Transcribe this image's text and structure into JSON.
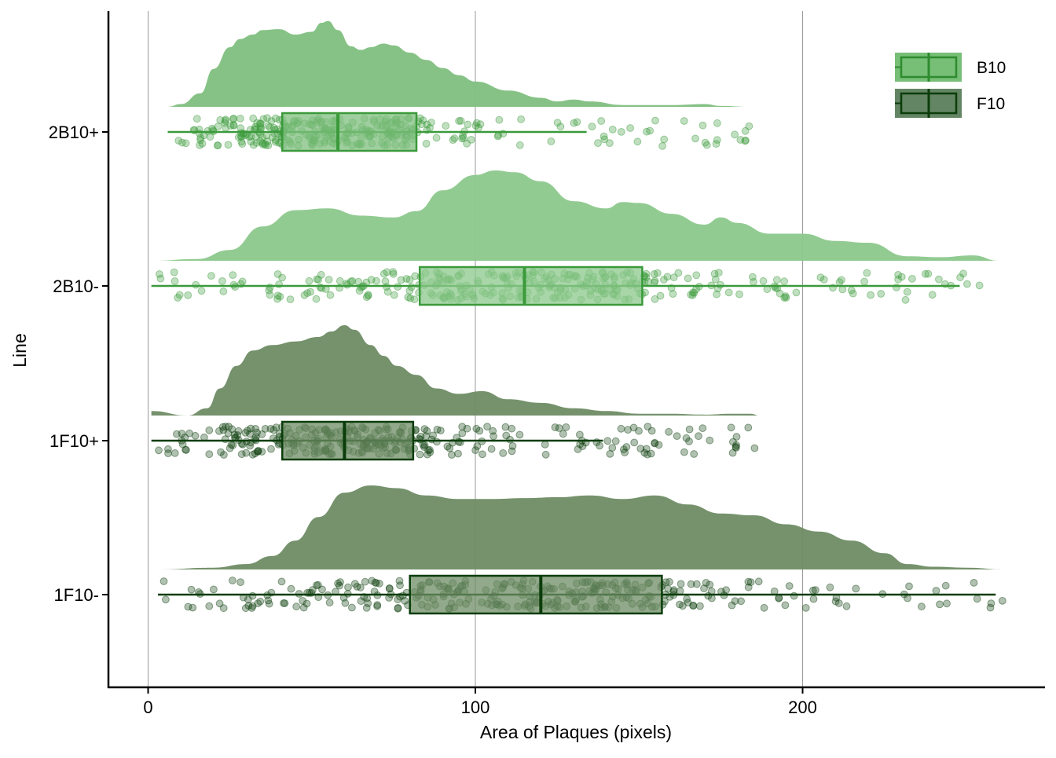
{
  "chart_data": {
    "type": "raincloud",
    "xlabel": "Area of Plaques (pixels)",
    "ylabel": "Line",
    "xlim": [
      -12,
      262
    ],
    "x_ticks": [
      0,
      100,
      200
    ],
    "x_tick_labels": [
      "0",
      "100",
      "200"
    ],
    "grid": "vertical major lines",
    "legend": {
      "placement": "top-right",
      "entries": [
        {
          "label": "B10",
          "fill": "#4aa84a",
          "stroke": "#2e8b2e"
        },
        {
          "label": "F10",
          "fill": "#2f5c2f",
          "stroke": "#0b3d0b"
        }
      ]
    },
    "categories": [
      "2B10+",
      "2B10-",
      "1F10+",
      "1F10-"
    ],
    "series": [
      {
        "category": "2B10+",
        "group": "B10",
        "fill": "#7fbf7f",
        "stroke": "#3a9a3a",
        "min": 6,
        "q1": 41,
        "median": 58,
        "q3": 82,
        "max": 134,
        "outlier_max": 184,
        "density_x": [
          6,
          10,
          16,
          20,
          25,
          28,
          32,
          35,
          40,
          45,
          50,
          53,
          55,
          58,
          62,
          65,
          68,
          72,
          75,
          80,
          85,
          90,
          95,
          100,
          110,
          120,
          125,
          130,
          135,
          145,
          160,
          170,
          175,
          184
        ],
        "density_y": [
          0,
          0.03,
          0.15,
          0.42,
          0.66,
          0.75,
          0.8,
          0.85,
          0.86,
          0.8,
          0.83,
          0.93,
          0.95,
          0.85,
          0.67,
          0.63,
          0.66,
          0.7,
          0.68,
          0.6,
          0.52,
          0.43,
          0.35,
          0.28,
          0.18,
          0.1,
          0.06,
          0.08,
          0.06,
          0.02,
          0.02,
          0.03,
          0.01,
          0
        ]
      },
      {
        "category": "2B10-",
        "group": "B10",
        "fill": "#8cc88c",
        "stroke": "#3a9a3a",
        "min": 1,
        "q1": 83,
        "median": 115,
        "q3": 151,
        "max": 248,
        "outlier_max": 260,
        "density_x": [
          1,
          15,
          25,
          35,
          45,
          55,
          65,
          75,
          82,
          90,
          100,
          106,
          112,
          120,
          130,
          140,
          145,
          150,
          160,
          170,
          175,
          180,
          190,
          200,
          210,
          220,
          232,
          242,
          252,
          260
        ],
        "density_y": [
          0,
          0.02,
          0.12,
          0.38,
          0.56,
          0.58,
          0.5,
          0.48,
          0.55,
          0.78,
          0.95,
          1.0,
          0.98,
          0.88,
          0.66,
          0.58,
          0.65,
          0.64,
          0.52,
          0.4,
          0.48,
          0.42,
          0.3,
          0.3,
          0.22,
          0.2,
          0.05,
          0.04,
          0.06,
          0
        ]
      },
      {
        "category": "1F10+",
        "group": "F10",
        "fill": "#6e8c64",
        "stroke": "#0b3d0b",
        "min": 1,
        "q1": 41,
        "median": 60,
        "q3": 81,
        "max": 139,
        "outlier_max": 187,
        "density_x": [
          1,
          12,
          18,
          22,
          27,
          32,
          38,
          45,
          52,
          56,
          60,
          63,
          68,
          72,
          76,
          82,
          88,
          95,
          102,
          110,
          120,
          130,
          140,
          150,
          160,
          170,
          178,
          184,
          187
        ],
        "density_y": [
          0.05,
          0,
          0.08,
          0.3,
          0.55,
          0.72,
          0.78,
          0.82,
          0.87,
          0.93,
          1.0,
          0.95,
          0.78,
          0.66,
          0.55,
          0.45,
          0.3,
          0.24,
          0.27,
          0.18,
          0.14,
          0.08,
          0.05,
          0.02,
          0.02,
          0.01,
          0.02,
          0.02,
          0
        ]
      },
      {
        "category": "1F10-",
        "group": "F10",
        "fill": "#6e8c64",
        "stroke": "#0b3d0b",
        "min": 3,
        "q1": 80,
        "median": 120,
        "q3": 157,
        "max": 259,
        "outlier_max": 262,
        "density_x": [
          3,
          20,
          30,
          38,
          45,
          52,
          60,
          68,
          76,
          85,
          95,
          105,
          115,
          125,
          135,
          145,
          155,
          165,
          175,
          185,
          195,
          205,
          215,
          225,
          232,
          240,
          250,
          262
        ],
        "density_y": [
          0,
          0.02,
          0.06,
          0.15,
          0.32,
          0.58,
          0.85,
          0.93,
          0.9,
          0.82,
          0.78,
          0.78,
          0.79,
          0.8,
          0.82,
          0.78,
          0.82,
          0.72,
          0.62,
          0.6,
          0.5,
          0.42,
          0.32,
          0.18,
          0.06,
          0.03,
          0.02,
          0
        ]
      }
    ]
  }
}
